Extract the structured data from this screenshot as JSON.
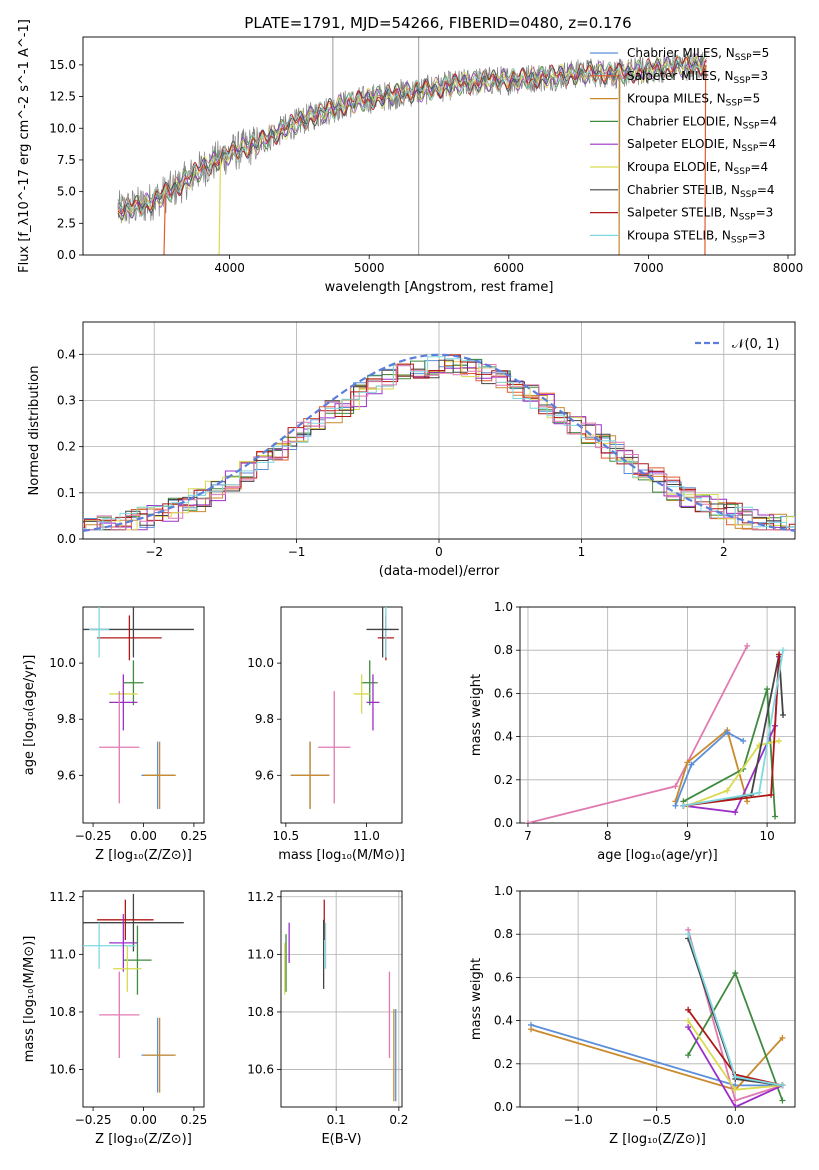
{
  "title": "PLATE=1791, MJD=54266, FIBERID=0480, z=0.176",
  "colors": {
    "chab_miles": "#5b8fd9",
    "salp_miles": "#e45b2e",
    "krou_miles": "#c98a2e",
    "chab_elodie": "#3f8a3f",
    "salp_elodie": "#9b30c9",
    "krou_elodie": "#dada50",
    "chab_stelib": "#444444",
    "salp_stelib": "#b01818",
    "krou_stelib": "#7fd8e0",
    "data": "#808080",
    "normal": "#5b7fd9",
    "pink": "#e07ab0",
    "olive": "#8aa040"
  },
  "chart_data": [
    {
      "id": "spectrum",
      "type": "line",
      "xlabel": "wavelength [Angstrom, rest frame]",
      "ylabel": "Flux [f_λ10^-17 erg cm^-2 s^-1 A^-1]",
      "xlim": [
        2950,
        8050
      ],
      "ylim": [
        0,
        17.2
      ],
      "xticks": [
        "4000",
        "5000",
        "6000",
        "7000",
        "8000"
      ],
      "yticks": [
        "0.0",
        "2.5",
        "5.0",
        "7.5",
        "10.0",
        "12.5",
        "15.0"
      ],
      "legend": [
        "Chabrier MILES, N_SSP=5",
        "Salpeter MILES, N_SSP=3",
        "Kroupa MILES, N_SSP=5",
        "Chabrier ELODIE, N_SSP=4",
        "Salpeter ELODIE, N_SSP=4",
        "Kroupa ELODIE, N_SSP=4",
        "Chabrier STELIB, N_SSP=4",
        "Salpeter STELIB, N_SSP=3",
        "Kroupa STELIB, N_SSP=3"
      ],
      "legend_placement": "top-right",
      "continuum": [
        [
          3200,
          3.5
        ],
        [
          3400,
          4.0
        ],
        [
          3600,
          5.2
        ],
        [
          3800,
          6.8
        ],
        [
          4000,
          8.0
        ],
        [
          4200,
          8.8
        ],
        [
          4400,
          10.0
        ],
        [
          4600,
          11.0
        ],
        [
          4800,
          11.8
        ],
        [
          5000,
          12.3
        ],
        [
          5200,
          12.7
        ],
        [
          5400,
          13.0
        ],
        [
          5600,
          13.4
        ],
        [
          5800,
          13.7
        ],
        [
          6000,
          13.8
        ],
        [
          6200,
          14.0
        ],
        [
          6400,
          14.2
        ],
        [
          6600,
          14.4
        ],
        [
          6800,
          14.3
        ],
        [
          7000,
          14.6
        ],
        [
          7200,
          14.9
        ],
        [
          7400,
          15.0
        ]
      ],
      "model_cutoffs": [
        [
          3530,
          3510
        ],
        [
          3930,
          3920
        ],
        [
          6790,
          6780
        ],
        [
          7410,
          7400
        ]
      ]
    },
    {
      "id": "residuals",
      "type": "step",
      "xlabel": "(data-model)/error",
      "ylabel": "Normed distribution",
      "xlim": [
        -2.5,
        2.5
      ],
      "ylim": [
        0,
        0.47
      ],
      "xticks": [
        "−2",
        "−1",
        "0",
        "1",
        "2"
      ],
      "yticks": [
        "0.0",
        "0.1",
        "0.2",
        "0.3",
        "0.4"
      ],
      "legend": [
        "𝒩(0, 1)"
      ],
      "legend_placement": "top-right",
      "grid": true
    },
    {
      "id": "age_vs_Z",
      "type": "errorbar",
      "xlabel": "Z [log₁₀(Z/Z⊙)]",
      "ylabel": "age  [log₁₀(age/yr)]",
      "xlim": [
        -0.3,
        0.3
      ],
      "ylim": [
        9.43,
        10.2
      ],
      "xticks": [
        "−0.25",
        "0.00",
        "0.25"
      ],
      "yticks": [
        "9.6",
        "9.8",
        "10.0"
      ],
      "points": [
        {
          "c": "chab_stelib",
          "x": -0.05,
          "y": 10.12,
          "dx": 0.3,
          "dy": 0.1
        },
        {
          "c": "salp_stelib",
          "x": -0.07,
          "y": 10.09,
          "dx": 0.16,
          "dy": 0.08
        },
        {
          "c": "krou_stelib",
          "x": -0.22,
          "y": 10.12,
          "dx": 0.05,
          "dy": 0.1
        },
        {
          "c": "chab_elodie",
          "x": -0.05,
          "y": 9.93,
          "dx": 0.05,
          "dy": 0.08
        },
        {
          "c": "krou_elodie",
          "x": -0.1,
          "y": 9.89,
          "dx": 0.07,
          "dy": 0.06
        },
        {
          "c": "salp_elodie",
          "x": -0.1,
          "y": 9.86,
          "dx": 0.07,
          "dy": 0.1
        },
        {
          "c": "pink",
          "x": -0.12,
          "y": 9.7,
          "dx": 0.1,
          "dy": 0.2
        },
        {
          "c": "chab_miles",
          "x": 0.07,
          "y": 9.6,
          "dx": 0.08,
          "dy": 0.12
        },
        {
          "c": "krou_miles",
          "x": 0.08,
          "y": 9.6,
          "dx": 0.08,
          "dy": 0.12
        }
      ]
    },
    {
      "id": "age_vs_mass",
      "type": "errorbar",
      "xlabel": "mass [log₁₀(M/M⊙)]",
      "ylabel": "",
      "xlim": [
        10.47,
        11.22
      ],
      "ylim": [
        9.43,
        10.2
      ],
      "xticks": [
        "10.5",
        "11.0"
      ],
      "yticks": [
        "9.6",
        "9.8",
        "10.0"
      ],
      "points": [
        {
          "c": "salp_stelib",
          "x": 11.12,
          "y": 10.09,
          "dx": 0.05,
          "dy": 0.08
        },
        {
          "c": "krou_stelib",
          "x": 11.12,
          "y": 10.12,
          "dx": 0.04,
          "dy": 0.1
        },
        {
          "c": "chab_stelib",
          "x": 11.1,
          "y": 10.12,
          "dx": 0.1,
          "dy": 0.1
        },
        {
          "c": "chab_elodie",
          "x": 11.02,
          "y": 9.93,
          "dx": 0.05,
          "dy": 0.08
        },
        {
          "c": "krou_elodie",
          "x": 10.97,
          "y": 9.89,
          "dx": 0.05,
          "dy": 0.07
        },
        {
          "c": "salp_elodie",
          "x": 11.04,
          "y": 9.86,
          "dx": 0.04,
          "dy": 0.1
        },
        {
          "c": "pink",
          "x": 10.8,
          "y": 9.7,
          "dx": 0.1,
          "dy": 0.2
        },
        {
          "c": "chab_miles",
          "x": 10.65,
          "y": 9.6,
          "dx": 0.12,
          "dy": 0.12
        },
        {
          "c": "krou_miles",
          "x": 10.65,
          "y": 9.6,
          "dx": 0.12,
          "dy": 0.12
        }
      ]
    },
    {
      "id": "massweight_vs_age",
      "type": "line",
      "xlabel": "age  [log₁₀(age/yr)]",
      "ylabel": "mass weight",
      "xlim": [
        6.9,
        10.35
      ],
      "ylim": [
        0,
        1
      ],
      "xticks": [
        "7",
        "8",
        "9",
        "10"
      ],
      "yticks": [
        "0.0",
        "0.2",
        "0.4",
        "0.6",
        "0.8",
        "1.0"
      ],
      "grid": true,
      "series": [
        {
          "c": "pink",
          "x": [
            7.0,
            8.85,
            9.75
          ],
          "y": [
            0.0,
            0.17,
            0.82
          ]
        },
        {
          "c": "krou_miles",
          "x": [
            8.85,
            9.0,
            9.5,
            9.75
          ],
          "y": [
            0.1,
            0.28,
            0.43,
            0.1
          ]
        },
        {
          "c": "chab_miles",
          "x": [
            8.85,
            9.05,
            9.5,
            9.7
          ],
          "y": [
            0.08,
            0.27,
            0.42,
            0.38
          ]
        },
        {
          "c": "chab_elodie",
          "x": [
            8.95,
            9.7,
            10.0,
            10.1
          ],
          "y": [
            0.1,
            0.25,
            0.62,
            0.03
          ]
        },
        {
          "c": "salp_elodie",
          "x": [
            8.95,
            9.6,
            10.1,
            10.15
          ],
          "y": [
            0.08,
            0.05,
            0.45,
            0.77
          ]
        },
        {
          "c": "krou_elodie",
          "x": [
            9.0,
            9.5,
            9.9,
            10.15
          ],
          "y": [
            0.08,
            0.15,
            0.36,
            0.38
          ]
        },
        {
          "c": "chab_stelib",
          "x": [
            8.95,
            9.8,
            10.15,
            10.2
          ],
          "y": [
            0.08,
            0.13,
            0.78,
            0.5
          ]
        },
        {
          "c": "salp_stelib",
          "x": [
            8.95,
            10.05,
            10.15
          ],
          "y": [
            0.08,
            0.13,
            0.78
          ]
        },
        {
          "c": "krou_stelib",
          "x": [
            8.95,
            9.9,
            10.2
          ],
          "y": [
            0.08,
            0.14,
            0.8
          ]
        }
      ]
    },
    {
      "id": "mass_vs_Z",
      "type": "errorbar",
      "xlabel": "Z [log₁₀(Z/Z⊙)]",
      "ylabel": "mass [log₁₀(M/M⊙)]",
      "xlim": [
        -0.3,
        0.3
      ],
      "ylim": [
        10.47,
        11.22
      ],
      "xticks": [
        "−0.25",
        "0.00",
        "0.25"
      ],
      "yticks": [
        "10.6",
        "10.8",
        "11.0",
        "11.2"
      ],
      "points": [
        {
          "c": "chab_stelib",
          "x": -0.05,
          "y": 11.11,
          "dx": 0.25,
          "dy": 0.1
        },
        {
          "c": "salp_stelib",
          "x": -0.09,
          "y": 11.12,
          "dx": 0.14,
          "dy": 0.07
        },
        {
          "c": "krou_stelib",
          "x": -0.22,
          "y": 11.03,
          "dx": 0.18,
          "dy": 0.08
        },
        {
          "c": "salp_elodie",
          "x": -0.1,
          "y": 11.04,
          "dx": 0.07,
          "dy": 0.1
        },
        {
          "c": "chab_elodie",
          "x": -0.03,
          "y": 10.98,
          "dx": 0.07,
          "dy": 0.12
        },
        {
          "c": "krou_elodie",
          "x": -0.08,
          "y": 10.95,
          "dx": 0.07,
          "dy": 0.08
        },
        {
          "c": "pink",
          "x": -0.12,
          "y": 10.79,
          "dx": 0.1,
          "dy": 0.15
        },
        {
          "c": "chab_miles",
          "x": 0.07,
          "y": 10.65,
          "dx": 0.08,
          "dy": 0.13
        },
        {
          "c": "krou_miles",
          "x": 0.08,
          "y": 10.65,
          "dx": 0.08,
          "dy": 0.13
        }
      ]
    },
    {
      "id": "mass_vs_ebv",
      "type": "errorbar",
      "xlabel": "E(B-V)",
      "ylabel": "",
      "xlim": [
        0.012,
        0.205
      ],
      "ylim": [
        10.47,
        11.22
      ],
      "xticks": [
        "0.1",
        "0.2"
      ],
      "yticks": [
        "10.6",
        "10.8",
        "11.0",
        "11.2"
      ],
      "grid": true,
      "points": [
        {
          "c": "salp_stelib",
          "x": 0.081,
          "y": 11.12,
          "dx": 0,
          "dy": 0.07
        },
        {
          "c": "krou_stelib",
          "x": 0.083,
          "y": 11.03,
          "dx": 0,
          "dy": 0.08
        },
        {
          "c": "chab_stelib",
          "x": 0.08,
          "y": 11.0,
          "dx": 0,
          "dy": 0.12
        },
        {
          "c": "salp_elodie",
          "x": 0.025,
          "y": 11.04,
          "dx": 0,
          "dy": 0.07
        },
        {
          "c": "chab_elodie",
          "x": 0.02,
          "y": 10.97,
          "dx": 0,
          "dy": 0.1
        },
        {
          "c": "krou_elodie",
          "x": 0.018,
          "y": 10.95,
          "dx": 0,
          "dy": 0.09
        },
        {
          "c": "pink",
          "x": 0.185,
          "y": 10.79,
          "dx": 0,
          "dy": 0.15
        },
        {
          "c": "chab_miles",
          "x": 0.195,
          "y": 10.65,
          "dx": 0,
          "dy": 0.16
        },
        {
          "c": "krou_miles",
          "x": 0.192,
          "y": 10.65,
          "dx": 0,
          "dy": 0.16
        }
      ]
    },
    {
      "id": "massweight_vs_Z",
      "type": "line",
      "xlabel": "Z [log₁₀(Z/Z⊙)]",
      "ylabel": "mass weight",
      "xlim": [
        -1.37,
        0.38
      ],
      "ylim": [
        0,
        1
      ],
      "xticks": [
        "−1.0",
        "−0.5",
        "0.0"
      ],
      "yticks": [
        "0.0",
        "0.2",
        "0.4",
        "0.6",
        "0.8",
        "1.0"
      ],
      "grid": true,
      "series": [
        {
          "c": "chab_miles",
          "x": [
            -1.3,
            0.0,
            0.3
          ],
          "y": [
            0.38,
            0.1,
            0.1
          ]
        },
        {
          "c": "krou_miles",
          "x": [
            -1.3,
            0.0,
            0.3
          ],
          "y": [
            0.36,
            0.08,
            0.32
          ]
        },
        {
          "c": "pink",
          "x": [
            -0.3,
            0.0,
            0.3
          ],
          "y": [
            0.82,
            0.03,
            0.1
          ]
        },
        {
          "c": "chab_elodie",
          "x": [
            -0.3,
            0.0,
            0.3
          ],
          "y": [
            0.24,
            0.62,
            0.03
          ]
        },
        {
          "c": "salp_elodie",
          "x": [
            -0.3,
            0.0,
            0.3
          ],
          "y": [
            0.37,
            0.0,
            0.1
          ]
        },
        {
          "c": "krou_elodie",
          "x": [
            -0.3,
            0.0,
            0.3
          ],
          "y": [
            0.4,
            0.08,
            0.1
          ]
        },
        {
          "c": "chab_stelib",
          "x": [
            -0.3,
            0.0,
            0.3
          ],
          "y": [
            0.78,
            0.13,
            0.1
          ]
        },
        {
          "c": "salp_stelib",
          "x": [
            -0.3,
            0.0,
            0.3
          ],
          "y": [
            0.45,
            0.15,
            0.1
          ]
        },
        {
          "c": "krou_stelib",
          "x": [
            -0.3,
            0.0,
            0.3
          ],
          "y": [
            0.8,
            0.14,
            0.1
          ]
        }
      ]
    }
  ]
}
